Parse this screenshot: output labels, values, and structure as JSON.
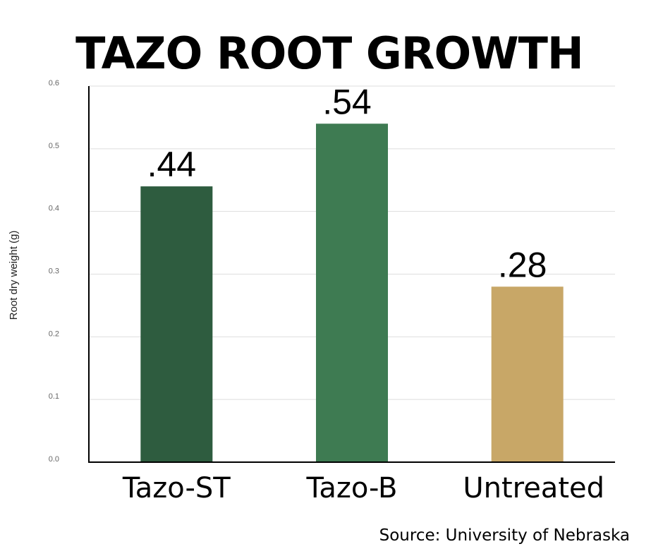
{
  "chart_data": {
    "type": "bar",
    "title": "TAZO ROOT GROWTH",
    "ylabel": "Root dry weight (g)",
    "xlabel": "",
    "categories": [
      "Tazo-ST",
      "Tazo-B",
      "Untreated"
    ],
    "values": [
      0.44,
      0.54,
      0.28
    ],
    "value_labels": [
      ".44",
      ".54",
      ".28"
    ],
    "bar_colors": [
      "#2e5c3f",
      "#3e7b52",
      "#c8a767"
    ],
    "ylim": [
      0,
      0.6
    ],
    "yticks": [
      "0.0",
      "0.1",
      "0.2",
      "0.3",
      "0.4",
      "0.5",
      "0.6"
    ],
    "grid": true,
    "source": "Source: University of Nebraska"
  }
}
